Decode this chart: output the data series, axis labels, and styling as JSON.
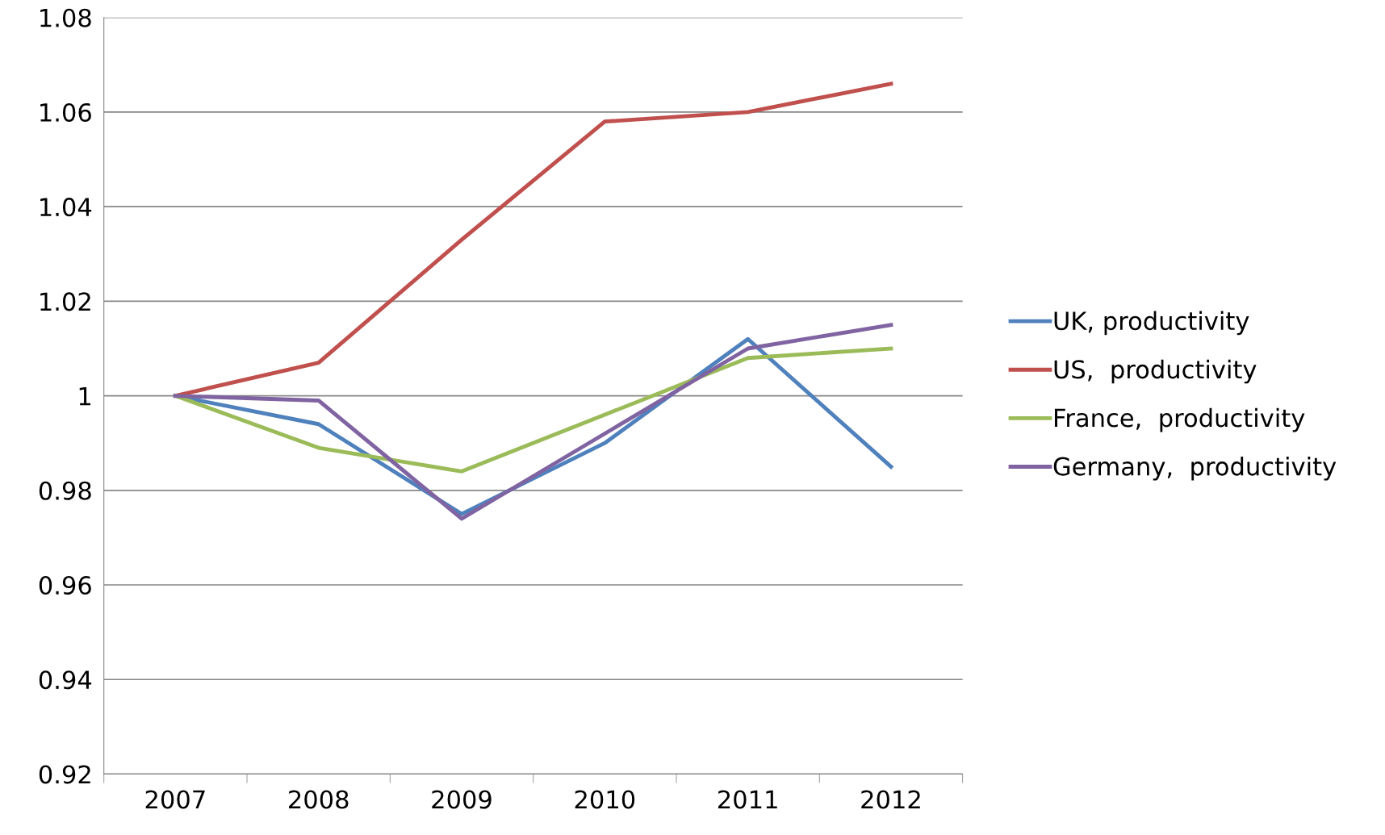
{
  "chart_data": {
    "type": "line",
    "categories": [
      "2007",
      "2008",
      "2009",
      "2010",
      "2011",
      "2012"
    ],
    "series": [
      {
        "name": "UK, productivity",
        "color": "#4f81bd",
        "values": [
          1.0,
          0.994,
          0.975,
          0.99,
          1.012,
          0.985
        ]
      },
      {
        "name": "US,  productivity",
        "color": "#c0504d",
        "values": [
          1.0,
          1.007,
          1.033,
          1.058,
          1.06,
          1.066
        ]
      },
      {
        "name": "France,  productivity",
        "color": "#9bbb59",
        "values": [
          1.0,
          0.989,
          0.984,
          0.996,
          1.008,
          1.01
        ]
      },
      {
        "name": "Germany,  productivity",
        "color": "#8064a2",
        "values": [
          1.0,
          0.999,
          0.974,
          0.992,
          1.01,
          1.015
        ]
      }
    ],
    "ylim": [
      0.92,
      1.08
    ],
    "yticks": [
      0.92,
      0.94,
      0.96,
      0.98,
      1,
      1.02,
      1.04,
      1.06,
      1.08
    ],
    "grid": "y",
    "legend": "right",
    "marker": "none",
    "line_style": "solid"
  }
}
